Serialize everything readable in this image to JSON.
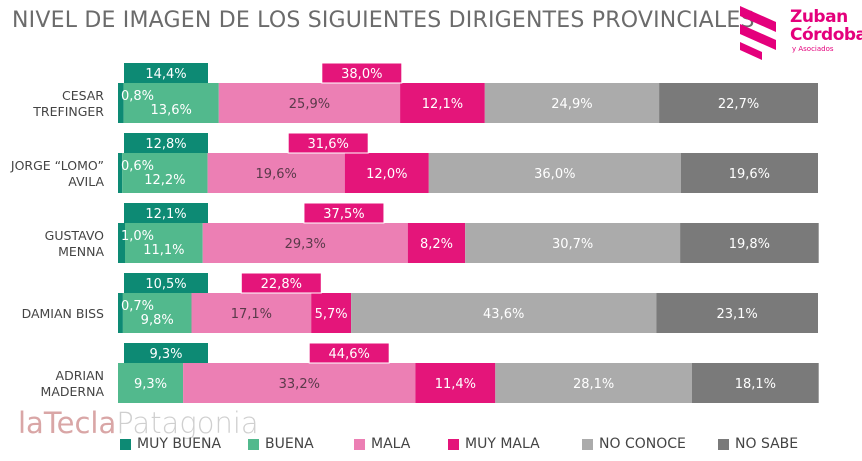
{
  "title": "NIVEL DE IMAGEN DE LOS SIGUIENTES DIRIGENTES PROVINCIALES",
  "logo": {
    "line1": "Zuban",
    "line2": "Córdoba",
    "line3": "y Asociados"
  },
  "watermark": {
    "part1": "laTecla",
    "part2": "Patagonia"
  },
  "colors": {
    "muy_buena": "#0d8a74",
    "buena": "#52b98d",
    "mala": "#ec7fb4",
    "muy_mala": "#e4157a",
    "no_conoce": "#ababab",
    "no_sabe": "#7a7a7a",
    "brand": "#e4007c"
  },
  "chart_data": {
    "type": "bar",
    "orientation": "horizontal-stacked",
    "title": "NIVEL DE IMAGEN DE LOS SIGUIENTES DIRIGENTES PROVINCIALES",
    "categories": [
      [
        "CESAR",
        "TREFINGER"
      ],
      [
        "JORGE “LOMO”",
        "AVILA"
      ],
      [
        "GUSTAVO",
        "MENNA"
      ],
      [
        "DAMIAN BISS"
      ],
      [
        "ADRIAN",
        "MADERNA"
      ]
    ],
    "series": [
      {
        "name": "MUY BUENA",
        "values": [
          0.8,
          0.6,
          1.0,
          0.7,
          0
        ],
        "labels": [
          "0,8%",
          "0,6%",
          "1,0%",
          "0,7%",
          ""
        ]
      },
      {
        "name": "BUENA",
        "values": [
          13.6,
          12.2,
          11.1,
          9.8,
          9.3
        ],
        "labels": [
          "13,6%",
          "12,2%",
          "11,1%",
          "9,8%",
          "9,3%"
        ]
      },
      {
        "name": "MALA",
        "values": [
          25.9,
          19.6,
          29.3,
          17.1,
          33.2
        ],
        "labels": [
          "25,9%",
          "19,6%",
          "29,3%",
          "17,1%",
          "33,2%"
        ]
      },
      {
        "name": "MUY MALA",
        "values": [
          12.1,
          12.0,
          8.2,
          5.7,
          11.4
        ],
        "labels": [
          "12,1%",
          "12,0%",
          "8,2%",
          "5,7%",
          "11,4%"
        ]
      },
      {
        "name": "NO CONOCE",
        "values": [
          24.9,
          36.0,
          30.7,
          43.6,
          28.1
        ],
        "labels": [
          "24,9%",
          "36,0%",
          "30,7%",
          "43,6%",
          "28,1%"
        ]
      },
      {
        "name": "NO SABE",
        "values": [
          22.7,
          19.6,
          19.8,
          23.1,
          18.1
        ],
        "labels": [
          "22,7%",
          "19,6%",
          "19,8%",
          "23,1%",
          "18,1%"
        ]
      }
    ],
    "totals": {
      "positive": {
        "values": [
          14.4,
          12.8,
          12.1,
          10.5,
          9.3
        ],
        "labels": [
          "14,4%",
          "12,8%",
          "12,1%",
          "10,5%",
          "9,3%"
        ]
      },
      "negative": {
        "values": [
          38.0,
          31.6,
          37.5,
          22.8,
          44.6
        ],
        "labels": [
          "38,0%",
          "31,6%",
          "37,5%",
          "22,8%",
          "44,6%"
        ]
      }
    },
    "xlim": [
      0,
      100
    ],
    "grid": false,
    "legend_position": "bottom"
  }
}
